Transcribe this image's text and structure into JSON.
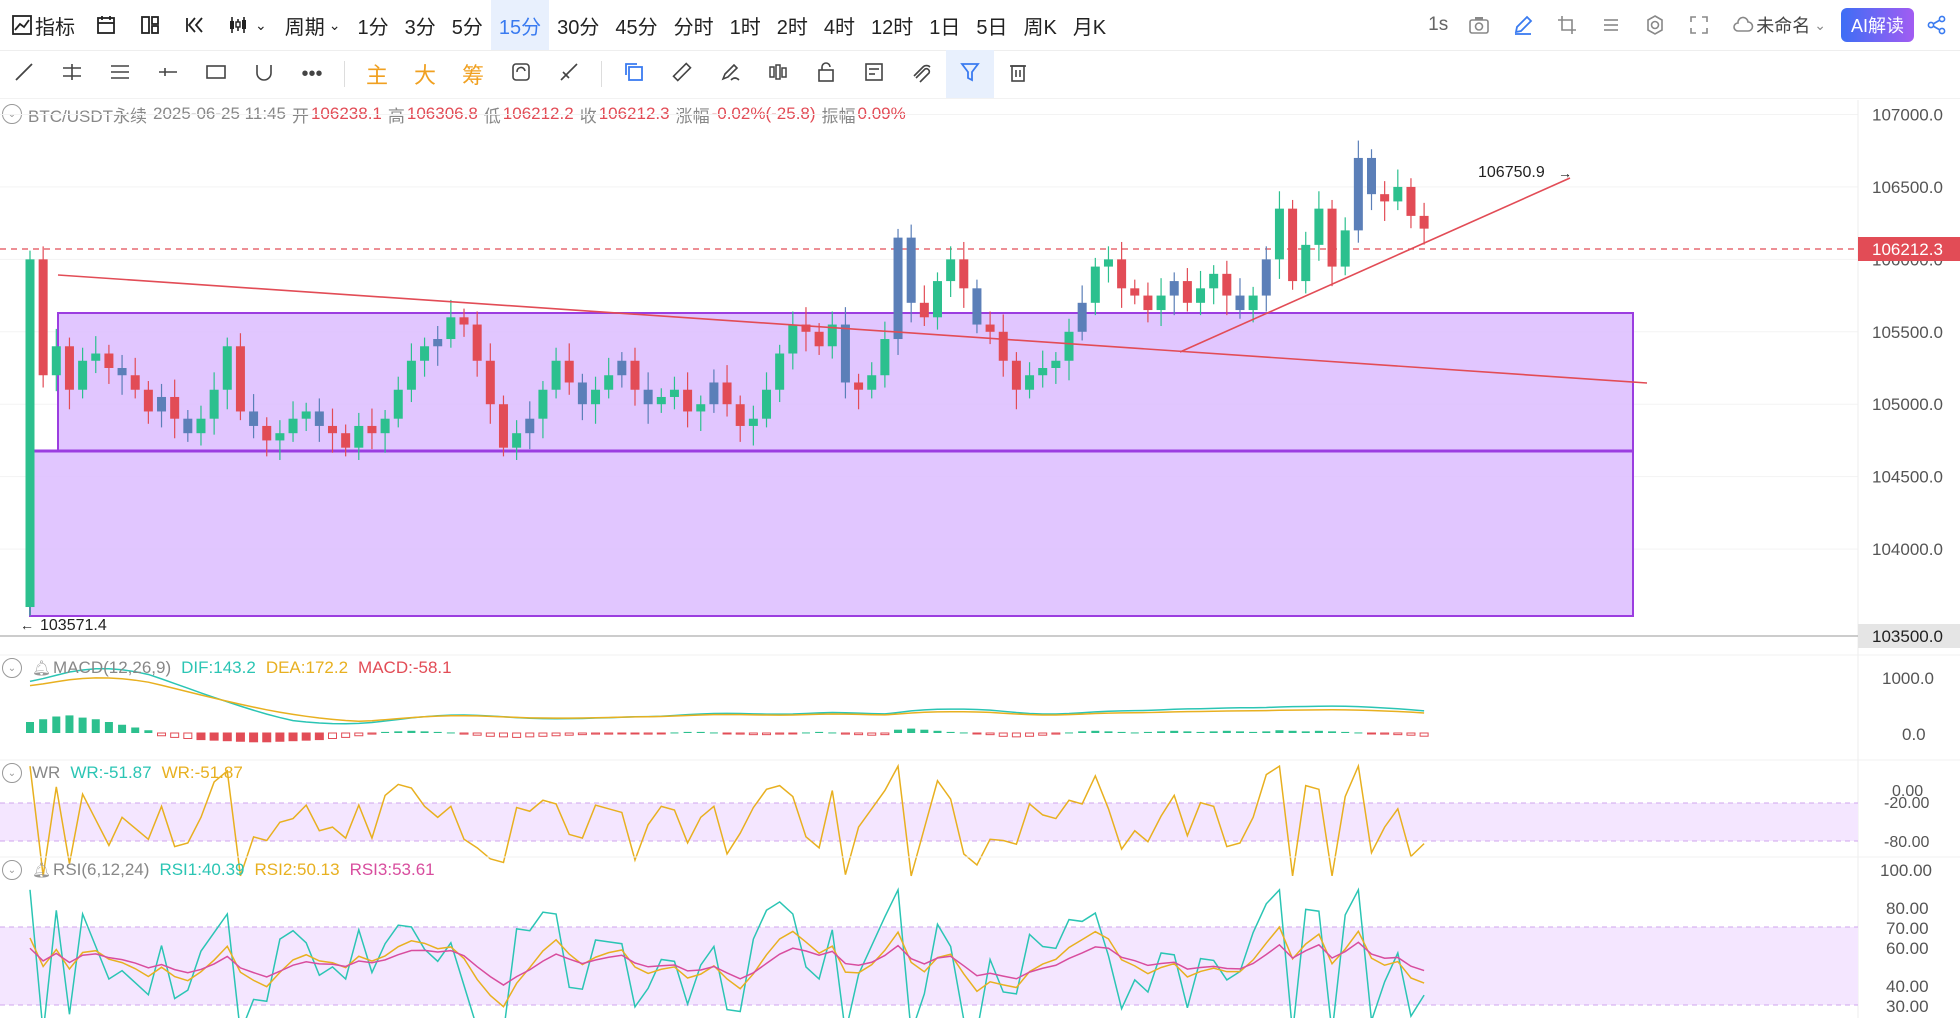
{
  "toolbar": {
    "indicator_label": "指标",
    "period_label": "周期",
    "periods": [
      "1分",
      "3分",
      "5分",
      "15分",
      "30分",
      "45分",
      "分时",
      "1时",
      "2时",
      "4时",
      "12时",
      "1日",
      "5日",
      "周K",
      "月K"
    ],
    "active_period": "15分",
    "refresh": "1s",
    "chart_name": "未命名",
    "ai_label": "AI解读"
  },
  "drawing_tools": {
    "main_label": "主",
    "big_label": "大",
    "chips_label": "筹"
  },
  "info_bar": {
    "symbol": "BTC/USDT永续",
    "datetime": "2025-06-25 11:45",
    "open_label": "开",
    "open": "106238.1",
    "high_label": "高",
    "high": "106306.8",
    "low_label": "低",
    "low": "106212.2",
    "close_label": "收",
    "close": "106212.3",
    "change_label": "涨幅",
    "change": "-0.02%(-25.8)",
    "amp_label": "振幅",
    "amp": "0.09%"
  },
  "price_axis": {
    "ticks": [
      "107000.0",
      "106500.0",
      "106000.0",
      "105500.0",
      "105000.0",
      "104500.0",
      "104000.0"
    ],
    "current_price": "106212.3",
    "bottom_label": "103500.0",
    "high_marker": "106750.9",
    "low_marker": "103571.4"
  },
  "macd": {
    "title": "MACD(12,26,9)",
    "dif": "DIF:143.2",
    "dea": "DEA:172.2",
    "macd": "MACD:-58.1",
    "ticks": [
      "1000.0",
      "0.0"
    ]
  },
  "wr": {
    "title": "WR",
    "wr1": "WR:-51.87",
    "wr2": "WR:-51.87",
    "ticks": [
      "0.00",
      "-20.00",
      "-80.00"
    ]
  },
  "rsi": {
    "title": "RSI(6,12,24)",
    "rsi1": "RSI1:40.39",
    "rsi2": "RSI2:50.13",
    "rsi3": "RSI3:53.61",
    "ticks": [
      "100.00",
      "80.00",
      "70.00",
      "60.00",
      "40.00",
      "30.00"
    ]
  },
  "colors": {
    "up": "#2cc08e",
    "down": "#e24c56",
    "neutral": "#5b7fb8",
    "box_fill": "#d9b6ff",
    "box_stroke": "#9b3de0",
    "accent": "#3a7bf0"
  },
  "chart_data": {
    "type": "candlestick",
    "price_range": [
      103400,
      107100
    ],
    "candles_oc": [
      [
        103600,
        106000
      ],
      [
        106000,
        105200
      ],
      [
        105200,
        105400
      ],
      [
        105400,
        105100
      ],
      [
        105100,
        105300
      ],
      [
        105300,
        105350
      ],
      [
        105350,
        105250
      ],
      [
        105250,
        105200
      ],
      [
        105200,
        105100
      ],
      [
        105100,
        104950
      ],
      [
        104950,
        105050
      ],
      [
        105050,
        104900
      ],
      [
        104900,
        104800
      ],
      [
        104800,
        104900
      ],
      [
        104900,
        105100
      ],
      [
        105100,
        105400
      ],
      [
        105400,
        104950
      ],
      [
        104950,
        104850
      ],
      [
        104850,
        104750
      ],
      [
        104750,
        104800
      ],
      [
        104800,
        104900
      ],
      [
        104900,
        104950
      ],
      [
        104950,
        104850
      ],
      [
        104850,
        104800
      ],
      [
        104800,
        104700
      ],
      [
        104700,
        104850
      ],
      [
        104850,
        104800
      ],
      [
        104800,
        104900
      ],
      [
        104900,
        105100
      ],
      [
        105100,
        105300
      ],
      [
        105300,
        105400
      ],
      [
        105400,
        105450
      ],
      [
        105450,
        105600
      ],
      [
        105600,
        105550
      ],
      [
        105550,
        105300
      ],
      [
        105300,
        105000
      ],
      [
        105000,
        104700
      ],
      [
        104700,
        104800
      ],
      [
        104800,
        104900
      ],
      [
        104900,
        105100
      ],
      [
        105100,
        105300
      ],
      [
        105300,
        105150
      ],
      [
        105150,
        105000
      ],
      [
        105000,
        105100
      ],
      [
        105100,
        105200
      ],
      [
        105200,
        105300
      ],
      [
        105300,
        105100
      ],
      [
        105100,
        105000
      ],
      [
        105000,
        105050
      ],
      [
        105050,
        105100
      ],
      [
        105100,
        104950
      ],
      [
        104950,
        105000
      ],
      [
        105000,
        105150
      ],
      [
        105150,
        105000
      ],
      [
        105000,
        104850
      ],
      [
        104850,
        104900
      ],
      [
        104900,
        105100
      ],
      [
        105100,
        105350
      ],
      [
        105350,
        105550
      ],
      [
        105550,
        105500
      ],
      [
        105500,
        105400
      ],
      [
        105400,
        105550
      ],
      [
        105550,
        105150
      ],
      [
        105150,
        105100
      ],
      [
        105100,
        105200
      ],
      [
        105200,
        105450
      ],
      [
        105450,
        106150
      ],
      [
        106150,
        105700
      ],
      [
        105700,
        105600
      ],
      [
        105600,
        105850
      ],
      [
        105850,
        106000
      ],
      [
        106000,
        105800
      ],
      [
        105800,
        105550
      ],
      [
        105550,
        105500
      ],
      [
        105500,
        105300
      ],
      [
        105300,
        105100
      ],
      [
        105100,
        105200
      ],
      [
        105200,
        105250
      ],
      [
        105250,
        105300
      ],
      [
        105300,
        105500
      ],
      [
        105500,
        105700
      ],
      [
        105700,
        105950
      ],
      [
        105950,
        106000
      ],
      [
        106000,
        105800
      ],
      [
        105800,
        105750
      ],
      [
        105750,
        105650
      ],
      [
        105650,
        105750
      ],
      [
        105750,
        105850
      ],
      [
        105850,
        105700
      ],
      [
        105700,
        105800
      ],
      [
        105800,
        105900
      ],
      [
        105900,
        105750
      ],
      [
        105750,
        105650
      ],
      [
        105650,
        105750
      ],
      [
        105750,
        106000
      ],
      [
        106000,
        106350
      ],
      [
        106350,
        105850
      ],
      [
        105850,
        106100
      ],
      [
        106100,
        106350
      ],
      [
        106350,
        105950
      ],
      [
        105950,
        106200
      ],
      [
        106200,
        106700
      ],
      [
        106700,
        106450
      ],
      [
        106450,
        106400
      ],
      [
        106400,
        106500
      ],
      [
        106500,
        106300
      ],
      [
        106300,
        106212
      ]
    ],
    "macd_hist": [
      200,
      250,
      300,
      320,
      280,
      250,
      200,
      150,
      100,
      50,
      -50,
      -80,
      -100,
      -120,
      -130,
      -140,
      -150,
      -160,
      -160,
      -150,
      -140,
      -130,
      -120,
      -100,
      -80,
      -50,
      -20,
      20,
      30,
      40,
      30,
      20,
      10,
      -20,
      -40,
      -60,
      -70,
      -80,
      -70,
      -60,
      -50,
      -40,
      -30,
      -20,
      -20,
      -10,
      -10,
      -20,
      -10,
      10,
      20,
      20,
      10,
      -10,
      -20,
      -30,
      -30,
      -20,
      -10,
      10,
      20,
      10,
      -20,
      -30,
      -40,
      -30,
      60,
      80,
      60,
      40,
      20,
      10,
      -10,
      -30,
      -60,
      -70,
      -60,
      -40,
      -20,
      10,
      30,
      40,
      30,
      20,
      10,
      20,
      30,
      40,
      30,
      20,
      30,
      40,
      30,
      20,
      30,
      50,
      40,
      30,
      40,
      30,
      20,
      10,
      -10,
      -20,
      -30,
      -40,
      -58.1
    ]
  }
}
